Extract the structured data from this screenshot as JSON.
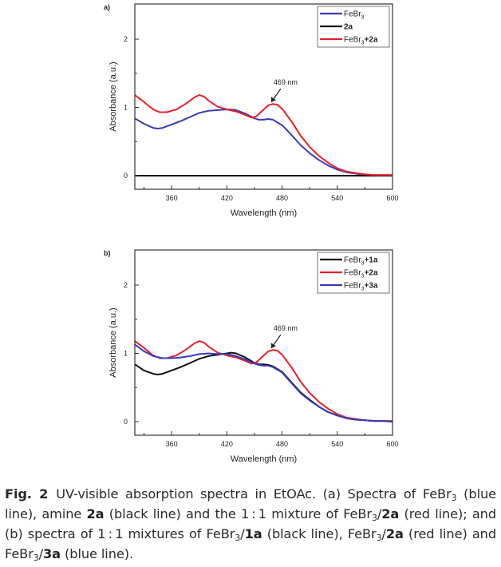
{
  "chart_data": [
    {
      "type": "line",
      "panel_label": "a)",
      "xlabel": "Wavelength (nm)",
      "ylabel": "Absorbance (a.u.)",
      "xlim": [
        320,
        600
      ],
      "ylim": [
        -0.2,
        2.5
      ],
      "xticks": [
        360,
        420,
        480,
        540,
        600
      ],
      "yticks": [
        0,
        1,
        2
      ],
      "legend_position": "top-right",
      "annotation": {
        "text": "469 nm",
        "x": 469,
        "y": 1.05
      },
      "series": [
        {
          "name": "FeBr3",
          "label_main": "FeBr",
          "label_sub": "3",
          "label_bold": "",
          "color": "#3a3ab8",
          "x": [
            320,
            330,
            340,
            345,
            350,
            360,
            370,
            380,
            390,
            400,
            410,
            420,
            425,
            430,
            440,
            450,
            455,
            460,
            465,
            470,
            480,
            490,
            500,
            510,
            520,
            530,
            540,
            550,
            560,
            570,
            580,
            590,
            600
          ],
          "y": [
            0.84,
            0.76,
            0.7,
            0.69,
            0.7,
            0.75,
            0.8,
            0.86,
            0.92,
            0.95,
            0.96,
            0.97,
            0.97,
            0.96,
            0.91,
            0.84,
            0.82,
            0.82,
            0.83,
            0.82,
            0.74,
            0.6,
            0.45,
            0.33,
            0.23,
            0.15,
            0.09,
            0.05,
            0.03,
            0.01,
            0.01,
            0.0,
            0.0
          ]
        },
        {
          "name": "2a",
          "label_main": "",
          "label_sub": "",
          "label_bold": "2a",
          "color": "#111111",
          "x": [
            320,
            600
          ],
          "y": [
            0.0,
            0.0
          ]
        },
        {
          "name": "FeBr3+2a",
          "label_main": "FeBr",
          "label_sub": "3",
          "label_bold": "+2a",
          "color": "#e8202a",
          "x": [
            320,
            330,
            340,
            347,
            355,
            365,
            375,
            385,
            390,
            395,
            400,
            410,
            420,
            430,
            440,
            447,
            452,
            460,
            465,
            470,
            475,
            480,
            490,
            500,
            510,
            520,
            530,
            540,
            550,
            560,
            570,
            580,
            590,
            600
          ],
          "y": [
            1.18,
            1.08,
            0.97,
            0.93,
            0.93,
            0.97,
            1.05,
            1.15,
            1.18,
            1.16,
            1.1,
            1.01,
            0.97,
            0.94,
            0.89,
            0.85,
            0.87,
            0.97,
            1.03,
            1.05,
            1.04,
            0.98,
            0.8,
            0.59,
            0.42,
            0.29,
            0.19,
            0.11,
            0.06,
            0.04,
            0.02,
            0.01,
            0.01,
            0.01
          ]
        }
      ]
    },
    {
      "type": "line",
      "panel_label": "b)",
      "xlabel": "Wavelength (nm)",
      "ylabel": "Absorbance (a.u.)",
      "xlim": [
        320,
        600
      ],
      "ylim": [
        -0.2,
        2.5
      ],
      "xticks": [
        360,
        420,
        480,
        540,
        600
      ],
      "yticks": [
        0,
        1,
        2
      ],
      "legend_position": "top-right",
      "annotation": {
        "text": "469 nm",
        "x": 469,
        "y": 1.05
      },
      "series": [
        {
          "name": "FeBr3+1a",
          "label_main": "FeBr",
          "label_sub": "3",
          "label_bold": "+1a",
          "color": "#111111",
          "x": [
            320,
            330,
            340,
            345,
            350,
            360,
            370,
            380,
            390,
            400,
            410,
            420,
            425,
            430,
            440,
            450,
            455,
            460,
            465,
            470,
            480,
            490,
            500,
            510,
            520,
            530,
            540,
            550,
            560,
            570,
            580,
            590,
            600
          ],
          "y": [
            0.84,
            0.75,
            0.7,
            0.69,
            0.7,
            0.75,
            0.8,
            0.86,
            0.92,
            0.96,
            0.98,
            1.0,
            1.01,
            1.0,
            0.94,
            0.86,
            0.84,
            0.84,
            0.83,
            0.81,
            0.73,
            0.58,
            0.43,
            0.32,
            0.22,
            0.14,
            0.09,
            0.05,
            0.03,
            0.02,
            0.01,
            0.01,
            0.0
          ]
        },
        {
          "name": "FeBr3+2a",
          "label_main": "FeBr",
          "label_sub": "3",
          "label_bold": "+2a",
          "color": "#e8202a",
          "x": [
            320,
            330,
            340,
            347,
            355,
            365,
            375,
            385,
            390,
            395,
            400,
            410,
            420,
            430,
            440,
            447,
            452,
            460,
            465,
            470,
            475,
            480,
            490,
            500,
            510,
            520,
            530,
            540,
            550,
            560,
            570,
            580,
            590,
            600
          ],
          "y": [
            1.18,
            1.08,
            0.97,
            0.93,
            0.93,
            0.97,
            1.05,
            1.15,
            1.18,
            1.16,
            1.1,
            1.01,
            0.97,
            0.94,
            0.89,
            0.85,
            0.87,
            0.97,
            1.03,
            1.05,
            1.04,
            0.98,
            0.8,
            0.59,
            0.42,
            0.29,
            0.19,
            0.11,
            0.06,
            0.04,
            0.02,
            0.01,
            0.01,
            0.01
          ]
        },
        {
          "name": "FeBr3+3a",
          "label_main": "FeBr",
          "label_sub": "3",
          "label_bold": "+3a",
          "color": "#3a3ab8",
          "x": [
            320,
            330,
            340,
            350,
            360,
            370,
            380,
            390,
            400,
            410,
            420,
            430,
            440,
            450,
            455,
            460,
            465,
            470,
            480,
            490,
            500,
            510,
            520,
            530,
            540,
            550,
            560,
            570,
            580,
            590,
            600
          ],
          "y": [
            1.13,
            1.03,
            0.96,
            0.93,
            0.93,
            0.94,
            0.96,
            0.99,
            1.0,
            0.99,
            0.99,
            0.96,
            0.91,
            0.85,
            0.83,
            0.82,
            0.82,
            0.8,
            0.72,
            0.57,
            0.42,
            0.31,
            0.22,
            0.14,
            0.09,
            0.05,
            0.03,
            0.02,
            0.01,
            0.01,
            0.0
          ]
        }
      ]
    }
  ],
  "caption": {
    "fig_label": "Fig. 2",
    "segments": [
      {
        "t": "UV-visible absorption spectra in EtOAc. (a) Spectra of FeBr"
      },
      {
        "t": "3",
        "sub": true
      },
      {
        "t": " (blue line), amine "
      },
      {
        "t": "2a",
        "bold": true
      },
      {
        "t": " (black line) and the 1 : 1 mixture of FeBr"
      },
      {
        "t": "3",
        "sub": true
      },
      {
        "t": "/"
      },
      {
        "t": "2a",
        "bold": true
      },
      {
        "t": " (red line); and (b) spectra of 1 : 1 mixtures of FeBr"
      },
      {
        "t": "3",
        "sub": true
      },
      {
        "t": "/"
      },
      {
        "t": "1a",
        "bold": true
      },
      {
        "t": " (black line), FeBr"
      },
      {
        "t": "3",
        "sub": true
      },
      {
        "t": "/"
      },
      {
        "t": "2a",
        "bold": true
      },
      {
        "t": " (red line) and FeBr"
      },
      {
        "t": "3",
        "sub": true
      },
      {
        "t": "/"
      },
      {
        "t": "3a",
        "bold": true
      },
      {
        "t": " (blue line)."
      }
    ]
  }
}
